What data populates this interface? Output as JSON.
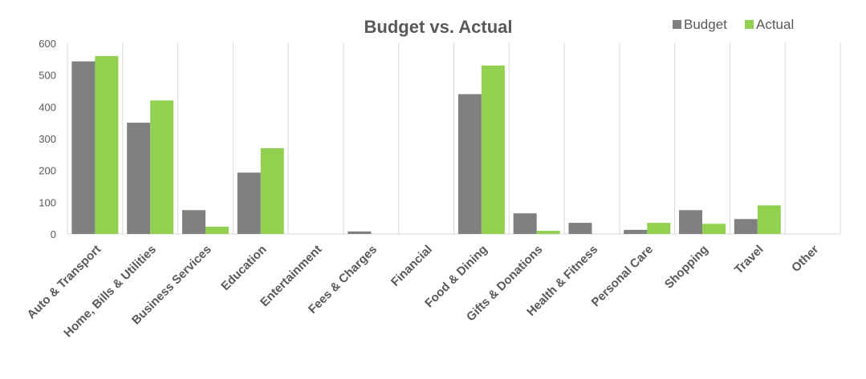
{
  "chart_data": {
    "type": "bar",
    "title": "Budget vs. Actual",
    "xlabel": "",
    "ylabel": "",
    "ylim": [
      0,
      600
    ],
    "yticks": [
      0,
      100,
      200,
      300,
      400,
      500,
      600
    ],
    "grid": "vertical-category-lines",
    "legend_position": "top-right",
    "categories": [
      "Auto & Transport",
      "Home, Bills & Utilities",
      "Business Services",
      "Education",
      "Entertainment",
      "Fees & Charges",
      "Financial",
      "Food & Dining",
      "Gifts & Donations",
      "Health & Fitness",
      "Personal Care",
      "Shopping",
      "Travel",
      "Other"
    ],
    "series": [
      {
        "name": "Budget",
        "color": "#808080",
        "values": [
          543,
          350,
          75,
          193,
          0,
          8,
          0,
          440,
          65,
          35,
          13,
          75,
          47,
          0
        ]
      },
      {
        "name": "Actual",
        "color": "#92D050",
        "values": [
          560,
          420,
          23,
          270,
          0,
          0,
          0,
          530,
          10,
          0,
          35,
          32,
          90,
          0
        ]
      }
    ]
  }
}
